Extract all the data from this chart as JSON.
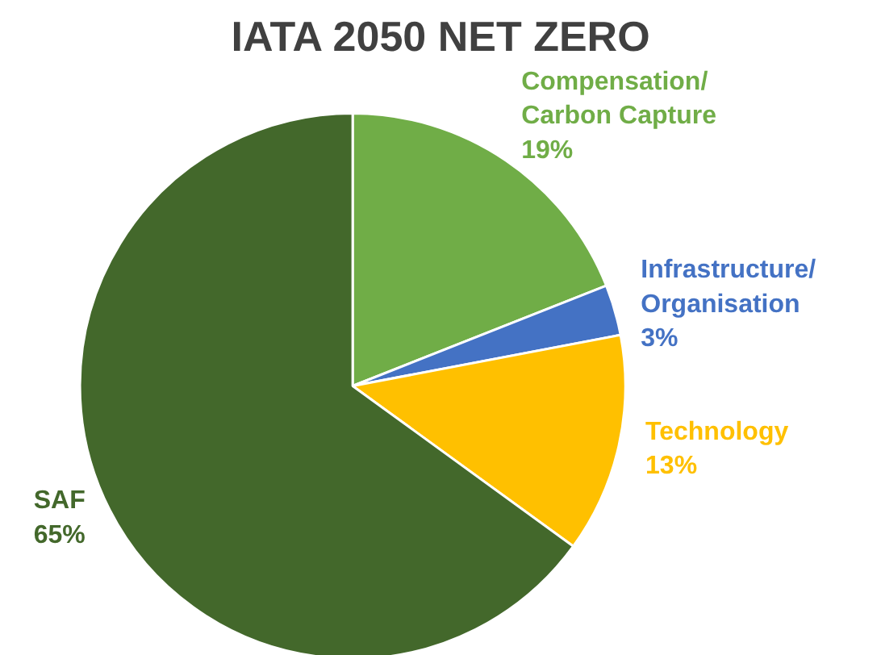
{
  "chart_data": {
    "type": "pie",
    "title": "IATA 2050 NET ZERO",
    "categories": [
      "Compensation/\nCarbon Capture",
      "Infrastructure/\nOrganisation",
      "Technology",
      "SAF"
    ],
    "values": [
      19,
      3,
      13,
      65
    ],
    "colors": [
      "#70ad47",
      "#4472c4",
      "#ffc000",
      "#43682b"
    ],
    "value_labels": [
      "19%",
      "3%",
      "13%",
      "65%"
    ]
  }
}
